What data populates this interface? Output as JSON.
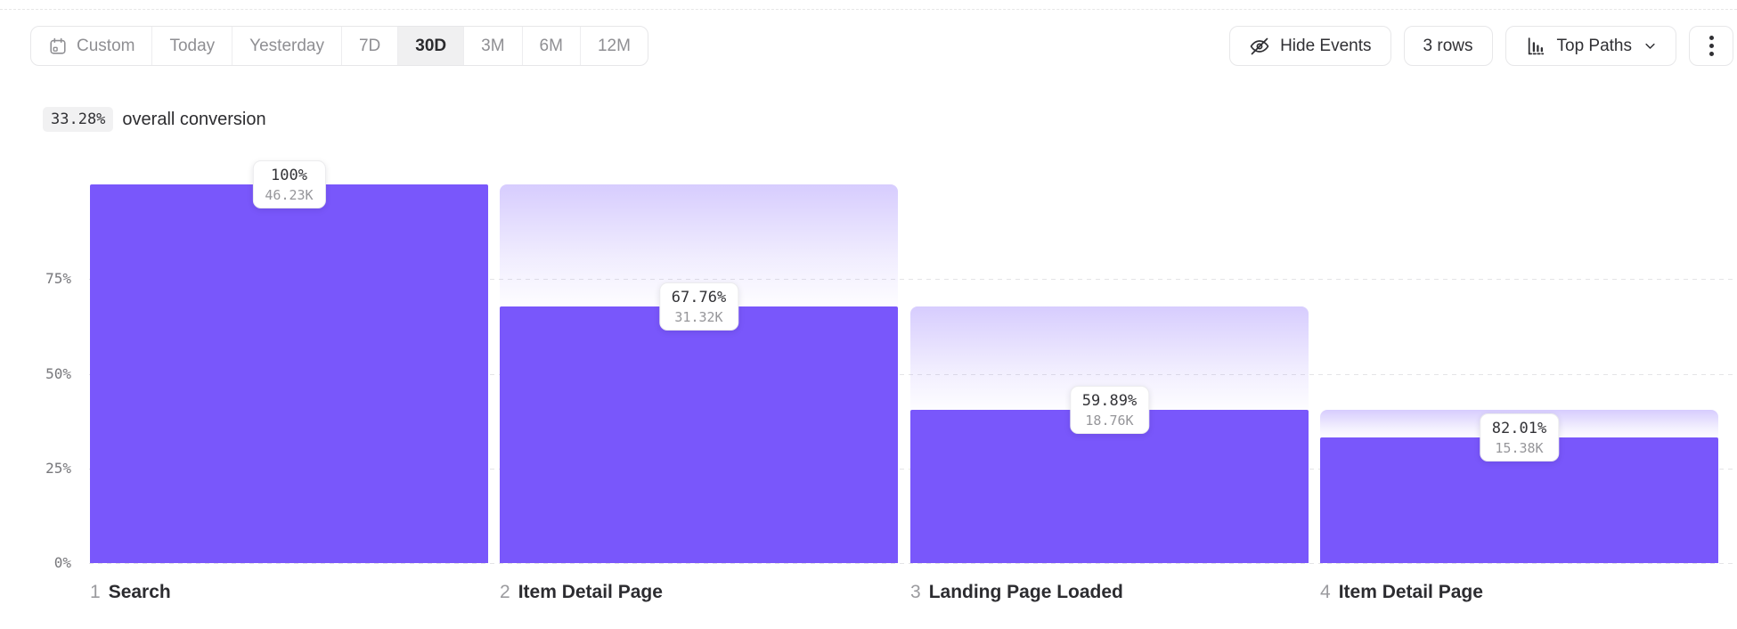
{
  "toolbar": {
    "date_ranges": [
      {
        "label": "Custom",
        "icon": "calendar-icon",
        "selected": false
      },
      {
        "label": "Today",
        "selected": false
      },
      {
        "label": "Yesterday",
        "selected": false
      },
      {
        "label": "7D",
        "selected": false
      },
      {
        "label": "30D",
        "selected": true
      },
      {
        "label": "3M",
        "selected": false
      },
      {
        "label": "6M",
        "selected": false
      },
      {
        "label": "12M",
        "selected": false
      }
    ],
    "hide_events_label": "Hide Events",
    "rows_label": "3 rows",
    "top_paths_label": "Top Paths"
  },
  "summary": {
    "value": "33.28%",
    "label": "overall conversion"
  },
  "chart_data": {
    "type": "bar",
    "subtype": "funnel",
    "overall_conversion_pct": 33.28,
    "yticks": [
      {
        "label": "75%",
        "value": 75
      },
      {
        "label": "50%",
        "value": 50
      },
      {
        "label": "25%",
        "value": 25
      },
      {
        "label": "0%",
        "value": 0
      }
    ],
    "grid": "dashed-horizontal",
    "bar_color": "#7957fb",
    "dropoff_gradient_top": "rgba(121,87,251,0.30)",
    "dropoff_gradient_bottom": "rgba(121,87,251,0.0)",
    "steps": [
      {
        "index": 1,
        "name": "Search",
        "conversion_label": "100%",
        "conversion_pct": 100.0,
        "count_label": "46.23K",
        "count": 46230,
        "pct_of_first": 100.0
      },
      {
        "index": 2,
        "name": "Item Detail Page",
        "conversion_label": "67.76%",
        "conversion_pct": 67.76,
        "count_label": "31.32K",
        "count": 31320,
        "pct_of_first": 67.76
      },
      {
        "index": 3,
        "name": "Landing Page Loaded",
        "conversion_label": "59.89%",
        "conversion_pct": 59.89,
        "count_label": "18.76K",
        "count": 18760,
        "pct_of_first": 40.58
      },
      {
        "index": 4,
        "name": "Item Detail Page",
        "conversion_label": "82.01%",
        "conversion_pct": 82.01,
        "count_label": "15.38K",
        "count": 15380,
        "pct_of_first": 33.27
      }
    ]
  }
}
